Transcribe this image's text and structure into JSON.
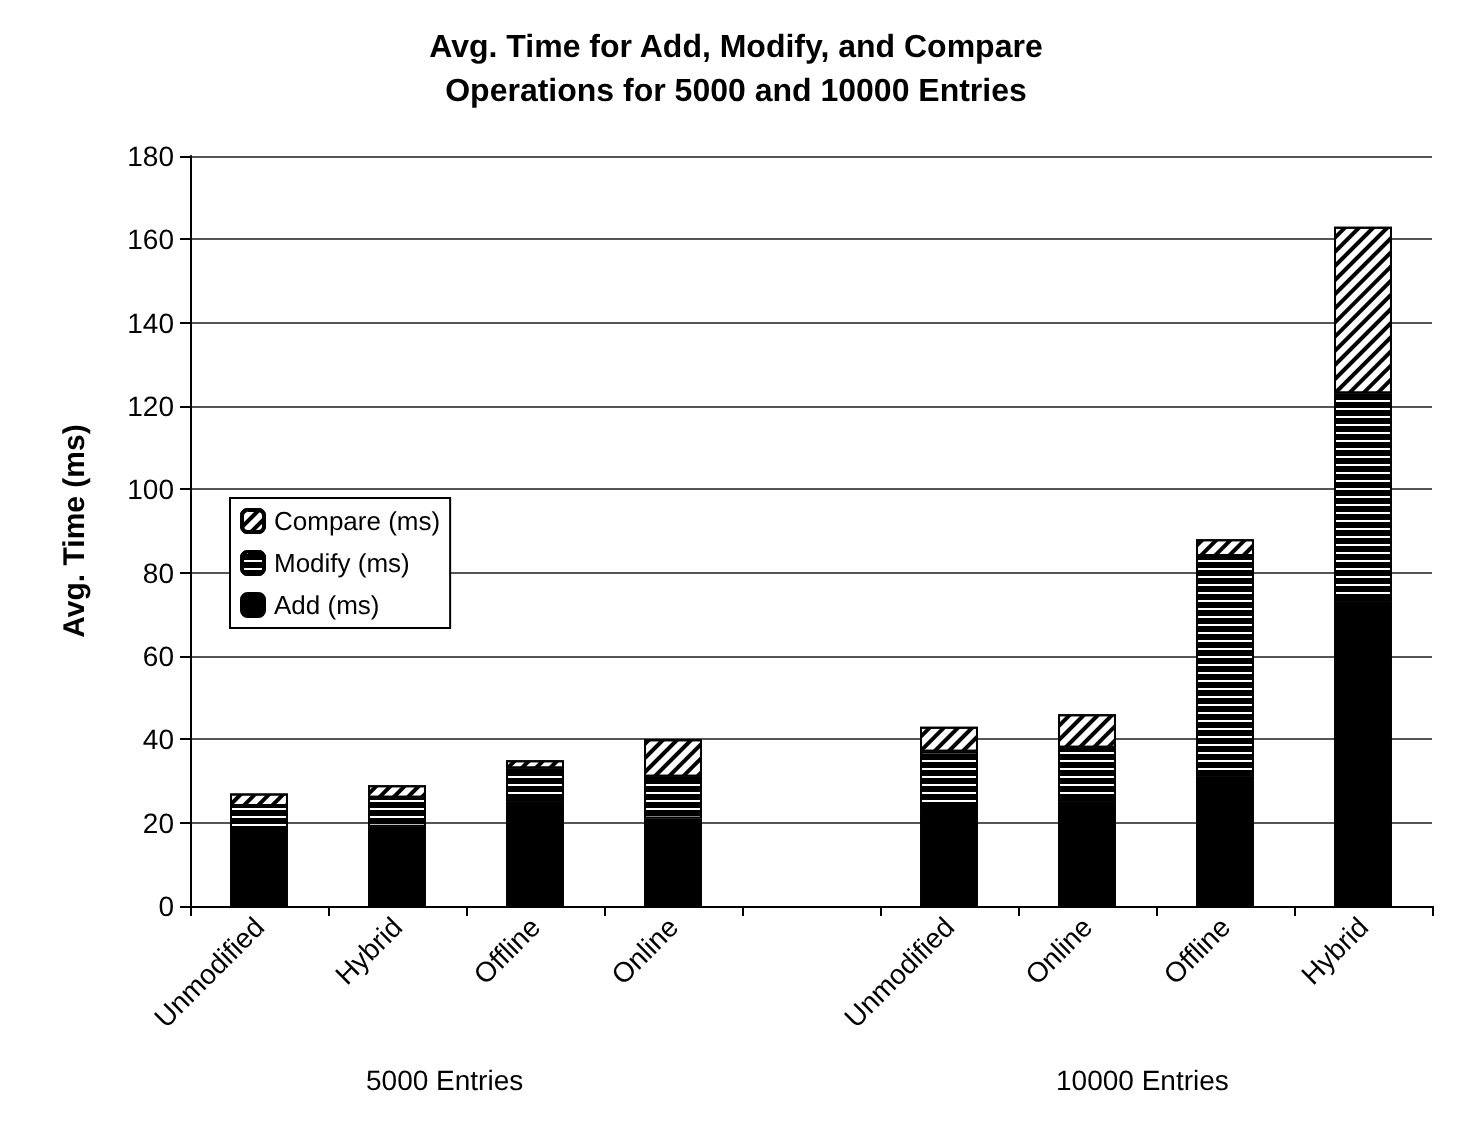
{
  "chart_data": {
    "type": "bar",
    "stacked": true,
    "title": "Avg. Time for Add, Modify, and Compare\nOperations for 5000 and 10000 Entries",
    "ylabel": "Avg. Time (ms)",
    "categories": [
      "Unmodified",
      "Hybrid",
      "Offline",
      "Online",
      null,
      "Unmodified",
      "Online",
      "Offline",
      "Hybrid"
    ],
    "series": [
      {
        "name": "Add (ms)",
        "color": "#000000",
        "values": [
          18,
          19,
          25,
          21,
          null,
          24,
          25,
          31,
          73
        ]
      },
      {
        "name": "Modify (ms)",
        "color": "#000000",
        "values": [
          6,
          7,
          8,
          10,
          null,
          13,
          13,
          53,
          50
        ]
      },
      {
        "name": "Compare (ms)",
        "color": "#ffffff",
        "values": [
          3,
          3,
          2,
          9,
          null,
          6,
          8,
          4,
          40
        ]
      }
    ],
    "ylim": [
      0,
      180
    ],
    "yticks": [
      0,
      20,
      40,
      60,
      80,
      100,
      120,
      140,
      160,
      180
    ],
    "grid": "y",
    "legend": "left",
    "annotations": [
      "5000 Entries",
      "10000 Entries"
    ]
  }
}
